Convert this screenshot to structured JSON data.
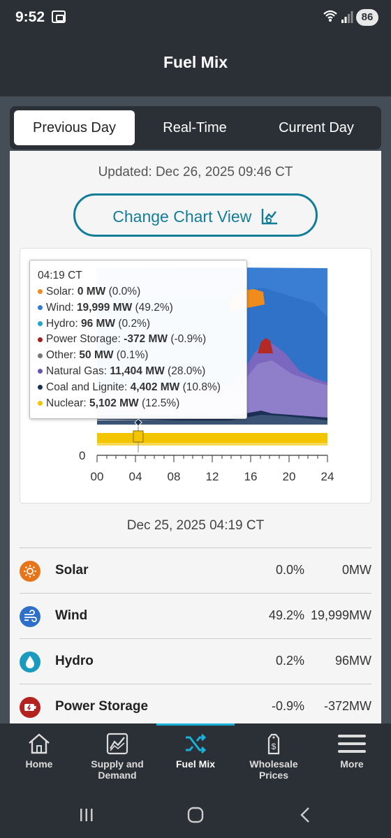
{
  "status_bar": {
    "time": "9:52",
    "battery": "86"
  },
  "header": {
    "title": "Fuel Mix"
  },
  "tabs": [
    {
      "label": "Previous Day",
      "active": true
    },
    {
      "label": "Real-Time",
      "active": false
    },
    {
      "label": "Current Day",
      "active": false
    }
  ],
  "updated_text": "Updated: Dec 26, 2025 09:46 CT",
  "change_chart_view_label": "Change Chart View",
  "chart_data": {
    "type": "area",
    "x_ticks": [
      "00",
      "04",
      "08",
      "12",
      "16",
      "20",
      "24"
    ],
    "x_range": [
      0,
      24
    ],
    "y_ticks_visible": [
      "0"
    ],
    "tooltip": {
      "time": "04:19 CT",
      "rows": [
        {
          "name": "Solar:",
          "value": "0 MW",
          "pct": "(0.0%)",
          "color": "#f08c1e"
        },
        {
          "name": "Wind:",
          "value": "19,999 MW",
          "pct": "(49.2%)",
          "color": "#2f7bd0"
        },
        {
          "name": "Hydro:",
          "value": "96 MW",
          "pct": "(0.2%)",
          "color": "#1ea7c4"
        },
        {
          "name": "Power Storage:",
          "value": "-372 MW",
          "pct": "(-0.9%)",
          "color": "#a32020"
        },
        {
          "name": "Other:",
          "value": "50 MW",
          "pct": "(0.1%)",
          "color": "#777777"
        },
        {
          "name": "Natural Gas:",
          "value": "11,404 MW",
          "pct": "(28.0%)",
          "color": "#6a55b0"
        },
        {
          "name": "Coal and Lignite:",
          "value": "4,402 MW",
          "pct": "(10.8%)",
          "color": "#1c2f55"
        },
        {
          "name": "Nuclear:",
          "value": "5,102 MW",
          "pct": "(12.5%)",
          "color": "#f2c500"
        }
      ]
    },
    "series": [
      {
        "name": "Nuclear",
        "color": "#f2c500"
      },
      {
        "name": "Coal and Lignite",
        "color": "#1c2f55"
      },
      {
        "name": "Natural Gas",
        "color": "#6a55b0"
      },
      {
        "name": "Power Storage",
        "color": "#a32020"
      },
      {
        "name": "Wind",
        "color": "#2f7bd0"
      },
      {
        "name": "Solar",
        "color": "#f08c1e"
      }
    ]
  },
  "selected_time": "Dec 25, 2025 04:19 CT",
  "fuel_list": [
    {
      "name": "Solar",
      "pct": "0.0%",
      "mw": "0MW",
      "icon": "sun-icon",
      "color": "#e8741a"
    },
    {
      "name": "Wind",
      "pct": "49.2%",
      "mw": "19,999MW",
      "icon": "wind-icon",
      "color": "#2e6fc9"
    },
    {
      "name": "Hydro",
      "pct": "0.2%",
      "mw": "96MW",
      "icon": "water-drop-icon",
      "color": "#1b9ac0"
    },
    {
      "name": "Power Storage",
      "pct": "-0.9%",
      "mw": "-372MW",
      "icon": "battery-icon",
      "color": "#b3221e"
    }
  ],
  "bottom_nav": [
    {
      "label_line1": "Home",
      "label_line2": "",
      "icon": "home-icon"
    },
    {
      "label_line1": "Supply and",
      "label_line2": "Demand",
      "icon": "chart-icon"
    },
    {
      "label_line1": "Fuel Mix",
      "label_line2": "",
      "icon": "shuffle-icon",
      "active": true
    },
    {
      "label_line1": "Wholesale",
      "label_line2": "Prices",
      "icon": "price-tag-icon"
    },
    {
      "label_line1": "More",
      "label_line2": "",
      "icon": "menu-icon"
    }
  ]
}
